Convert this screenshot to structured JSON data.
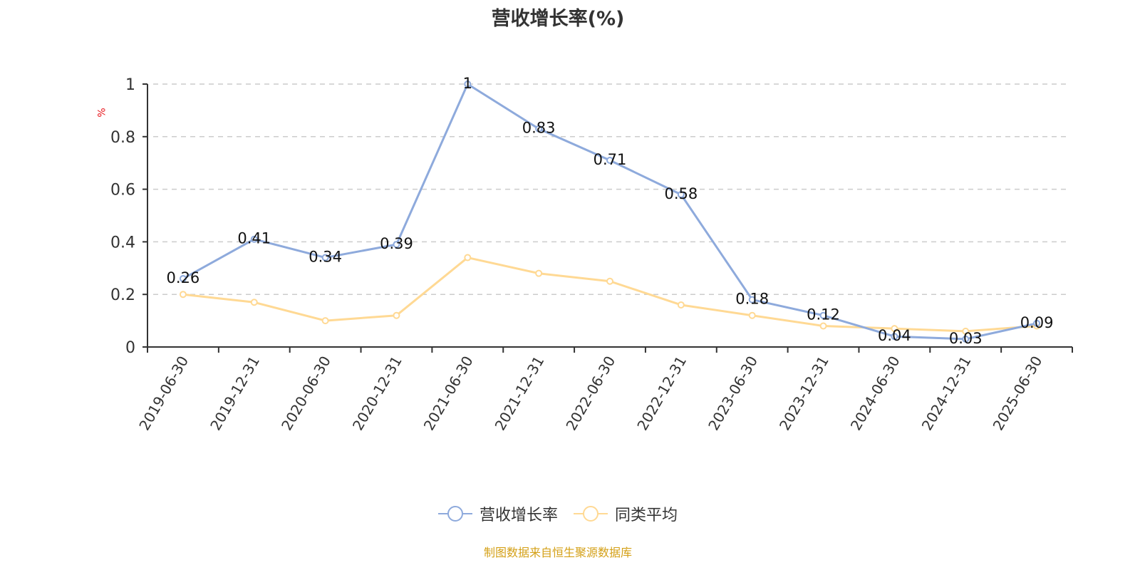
{
  "title": "营收增长率(%)",
  "y_unit": "%",
  "source_note": "制图数据来自恒生聚源数据库",
  "legend": [
    {
      "label": "营收增长率",
      "color": "#8eaadc"
    },
    {
      "label": "同类平均",
      "color": "#ffd994"
    }
  ],
  "colors": {
    "series1": "#8eaadc",
    "series2": "#ffd994",
    "axis": "#333333",
    "grid": "#cccccc",
    "title": "#333333",
    "source": "#d4a017",
    "unit": "#e8171d"
  },
  "chart_data": {
    "type": "line",
    "title": "营收增长率(%)",
    "xlabel": "",
    "ylabel": "%",
    "ylim": [
      0,
      1
    ],
    "yticks": [
      0,
      0.2,
      0.4,
      0.6,
      0.8,
      1
    ],
    "grid": true,
    "legend_position": "bottom",
    "categories": [
      "2019-06-30",
      "2019-12-31",
      "2020-06-30",
      "2020-12-31",
      "2021-06-30",
      "2021-12-31",
      "2022-06-30",
      "2022-12-31",
      "2023-06-30",
      "2023-12-31",
      "2024-06-30",
      "2024-12-31",
      "2025-06-30"
    ],
    "series": [
      {
        "name": "营收增长率",
        "values": [
          0.26,
          0.41,
          0.34,
          0.39,
          1,
          0.83,
          0.71,
          0.58,
          0.18,
          0.12,
          0.04,
          0.03,
          0.09
        ],
        "data_labels": true
      },
      {
        "name": "同类平均",
        "values": [
          0.2,
          0.17,
          0.1,
          0.12,
          0.34,
          0.28,
          0.25,
          0.16,
          0.12,
          0.08,
          0.07,
          0.06,
          0.08
        ],
        "data_labels": false
      }
    ]
  }
}
